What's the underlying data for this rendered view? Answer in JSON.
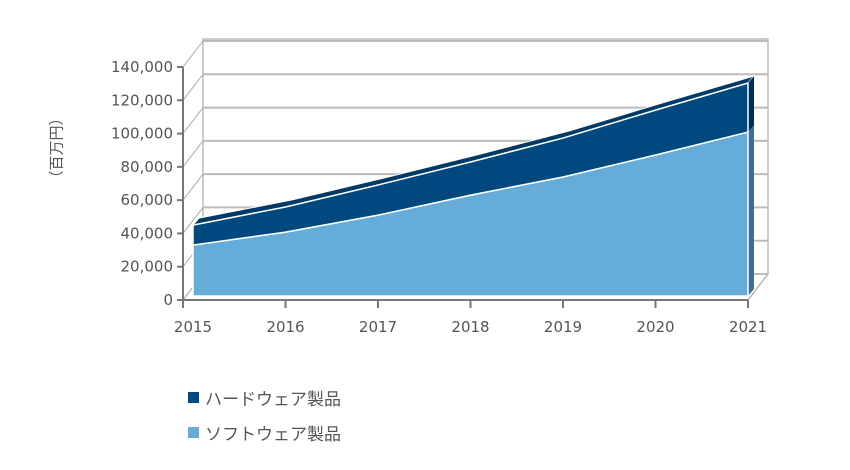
{
  "chart_data": {
    "type": "area",
    "stacked": true,
    "three_d": true,
    "categories": [
      "2015",
      "2016",
      "2017",
      "2018",
      "2019",
      "2020",
      "2021"
    ],
    "series": [
      {
        "name": "ソフトウェア製品",
        "color": "#66acd9",
        "values": [
          30600,
          38400,
          48600,
          60600,
          71500,
          84700,
          98500
        ]
      },
      {
        "name": "ハードウェア製品",
        "color": "#00497f",
        "values": [
          12000,
          15100,
          18100,
          19900,
          23400,
          27000,
          29500
        ]
      }
    ],
    "ylabel": "（百万円）",
    "ylim": [
      0,
      140000
    ],
    "yticks": [
      "0",
      "20,000",
      "40,000",
      "60,000",
      "80,000",
      "100,000",
      "120,000",
      "140,000"
    ],
    "ytick_values": [
      0,
      20000,
      40000,
      60000,
      80000,
      100000,
      120000,
      140000
    ],
    "grid": true,
    "legend_position": "bottom-left",
    "legend_order": [
      "ハードウェア製品",
      "ソフトウェア製品"
    ]
  }
}
